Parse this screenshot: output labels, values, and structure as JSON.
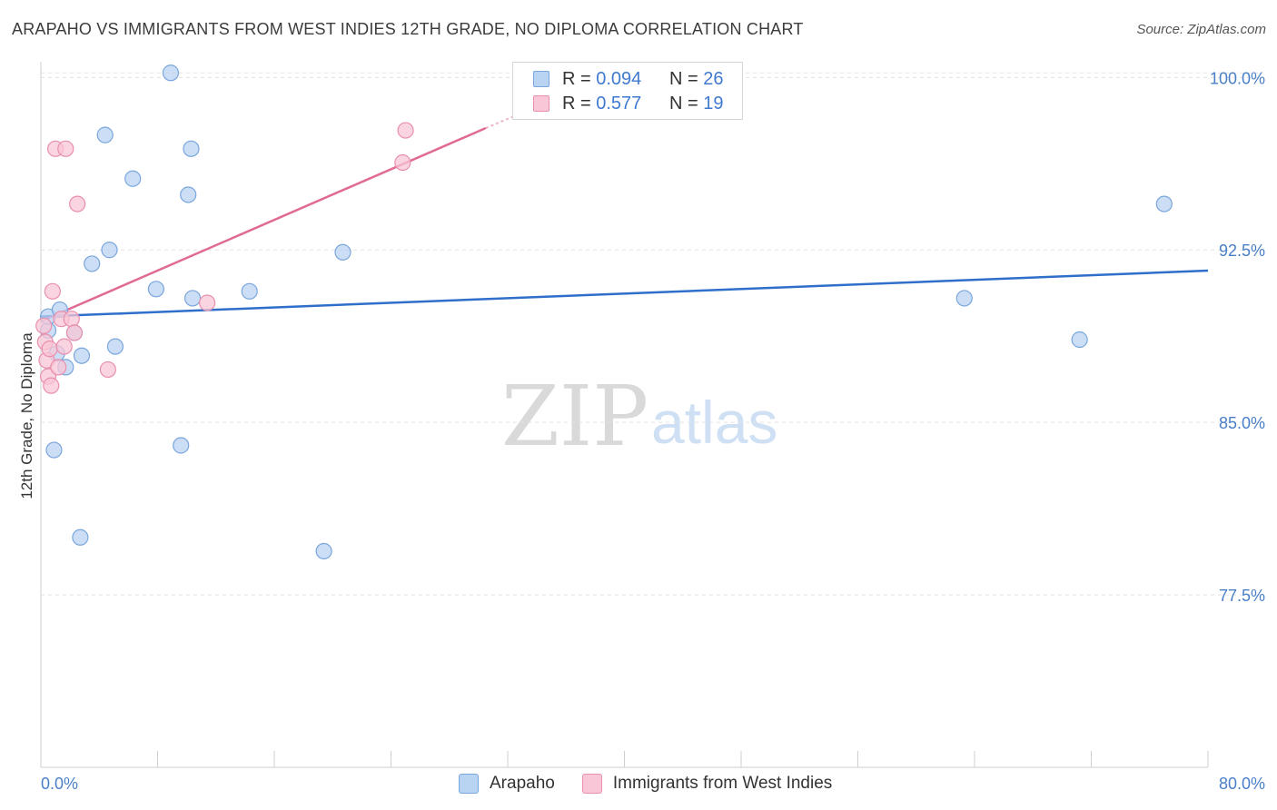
{
  "title": "ARAPAHO VS IMMIGRANTS FROM WEST INDIES 12TH GRADE, NO DIPLOMA CORRELATION CHART",
  "source": "Source: ZipAtlas.com",
  "watermark": {
    "zip": "ZIP",
    "atlas": "atlas"
  },
  "legend_top": {
    "rows": [
      {
        "r_label": "R = ",
        "r_value": "0.094",
        "n_label": "N = ",
        "n_value": "26"
      },
      {
        "r_label": "R = ",
        "r_value": "0.577",
        "n_label": "N = ",
        "n_value": "19"
      }
    ]
  },
  "legend_bottom": {
    "items": [
      "Arapaho",
      "Immigrants from West Indies"
    ]
  },
  "colors": {
    "blue_fill": "#b9d3f3",
    "blue_stroke": "#7aa6dc",
    "blue_line": "#2f6fca",
    "pink_fill": "#f8c6d6",
    "pink_stroke": "#e98fae",
    "pink_line": "#e06a94",
    "grid": "#e2e2e2",
    "axis_label": "#4a7fc8"
  },
  "chart_data": {
    "type": "scatter",
    "title": "ARAPAHO VS IMMIGRANTS FROM WEST INDIES 12TH GRADE, NO DIPLOMA CORRELATION CHART",
    "xlabel": "",
    "ylabel": "12th Grade, No Diploma",
    "xlim": [
      0,
      80
    ],
    "ylim": [
      70.0,
      101.0
    ],
    "x_tick_labels": [
      "0.0%",
      "80.0%"
    ],
    "y_ticks": [
      77.5,
      85.0,
      92.5,
      100.0
    ],
    "y_tick_labels": [
      "77.5%",
      "85.0%",
      "92.5%",
      "100.0%"
    ],
    "grid": true,
    "legend_position": "top-center",
    "series": [
      {
        "name": "Arapaho",
        "r": 0.094,
        "n": 26,
        "points": [
          [
            0.5,
            89.0
          ],
          [
            0.5,
            89.6
          ],
          [
            0.9,
            83.8
          ],
          [
            1.3,
            89.9
          ],
          [
            1.7,
            87.4
          ],
          [
            2.3,
            88.9
          ],
          [
            2.8,
            87.9
          ],
          [
            2.7,
            80.0
          ],
          [
            3.5,
            91.9
          ],
          [
            4.4,
            97.5
          ],
          [
            4.7,
            92.5
          ],
          [
            5.1,
            88.3
          ],
          [
            6.3,
            95.6
          ],
          [
            7.9,
            90.8
          ],
          [
            8.9,
            100.2
          ],
          [
            9.6,
            84.0
          ],
          [
            10.1,
            94.9
          ],
          [
            10.3,
            96.9
          ],
          [
            10.4,
            90.4
          ],
          [
            14.3,
            90.7
          ],
          [
            19.4,
            79.4
          ],
          [
            20.7,
            92.4
          ],
          [
            63.3,
            90.4
          ],
          [
            71.2,
            88.6
          ],
          [
            77.0,
            94.5
          ],
          [
            1.1,
            88.0
          ]
        ],
        "trend": {
          "x": [
            0,
            80
          ],
          "y": [
            89.6,
            91.6
          ]
        }
      },
      {
        "name": "Immigrants from West Indies",
        "r": 0.577,
        "n": 19,
        "points": [
          [
            0.2,
            89.2
          ],
          [
            0.3,
            88.5
          ],
          [
            0.4,
            87.7
          ],
          [
            0.5,
            87.0
          ],
          [
            0.6,
            88.2
          ],
          [
            0.7,
            86.6
          ],
          [
            0.8,
            90.7
          ],
          [
            1.0,
            96.9
          ],
          [
            1.2,
            87.4
          ],
          [
            1.4,
            89.5
          ],
          [
            1.6,
            88.3
          ],
          [
            1.7,
            96.9
          ],
          [
            2.1,
            89.5
          ],
          [
            2.3,
            88.9
          ],
          [
            2.5,
            94.5
          ],
          [
            4.6,
            87.3
          ],
          [
            11.4,
            90.2
          ],
          [
            24.8,
            96.3
          ],
          [
            25.0,
            97.7
          ]
        ],
        "trend": {
          "x": [
            0,
            30.5
          ],
          "y": [
            89.4,
            97.8
          ]
        },
        "trend_dashed": {
          "x": [
            30.5,
            35
          ],
          "y": [
            97.8,
            99.0
          ]
        }
      }
    ]
  }
}
